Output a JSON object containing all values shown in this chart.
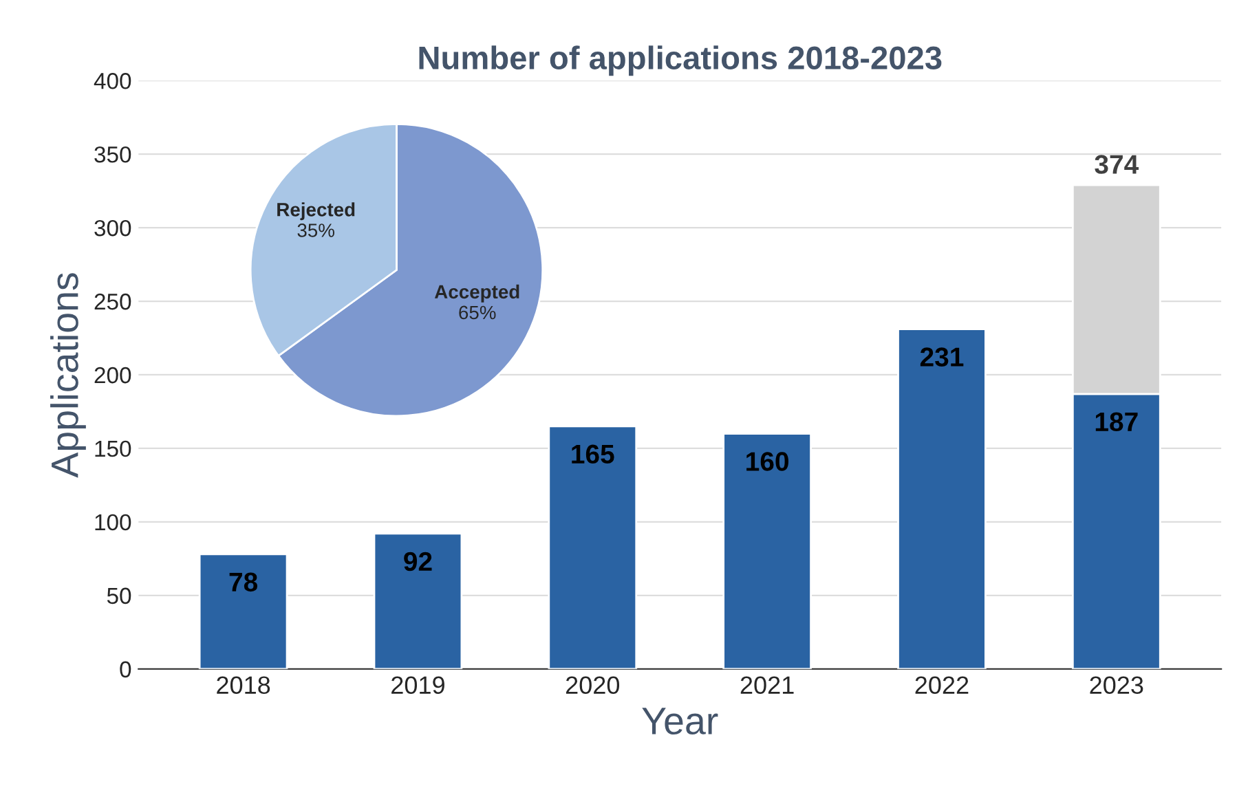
{
  "chart_data": [
    {
      "type": "bar",
      "title": "Number of applications 2018-2023",
      "xlabel": "Year",
      "ylabel": "Applications",
      "categories": [
        "2018",
        "2019",
        "2020",
        "2021",
        "2022",
        "2023"
      ],
      "stacked": true,
      "series": [
        {
          "color": "#2a63a3",
          "values": [
            78,
            92,
            165,
            160,
            231,
            187
          ],
          "value_labels": [
            "78",
            "92",
            "165",
            "160",
            "231",
            "187"
          ]
        },
        {
          "color": "#d3d3d3",
          "values": [
            null,
            null,
            null,
            null,
            null,
            142
          ]
        }
      ],
      "annotations": [
        {
          "text": "374",
          "x": "2023",
          "y": 329
        }
      ],
      "ylim": [
        0,
        400
      ],
      "yticks": [
        0,
        50,
        100,
        150,
        200,
        250,
        300,
        350,
        400
      ],
      "grid": "y",
      "legend": false
    },
    {
      "type": "pie",
      "categories": [
        "Accepted",
        "Rejected"
      ],
      "values": [
        65,
        35
      ],
      "colors": [
        "#7d98cf",
        "#a9c6e6"
      ],
      "value_labels": [
        "65%",
        "35%"
      ]
    }
  ]
}
